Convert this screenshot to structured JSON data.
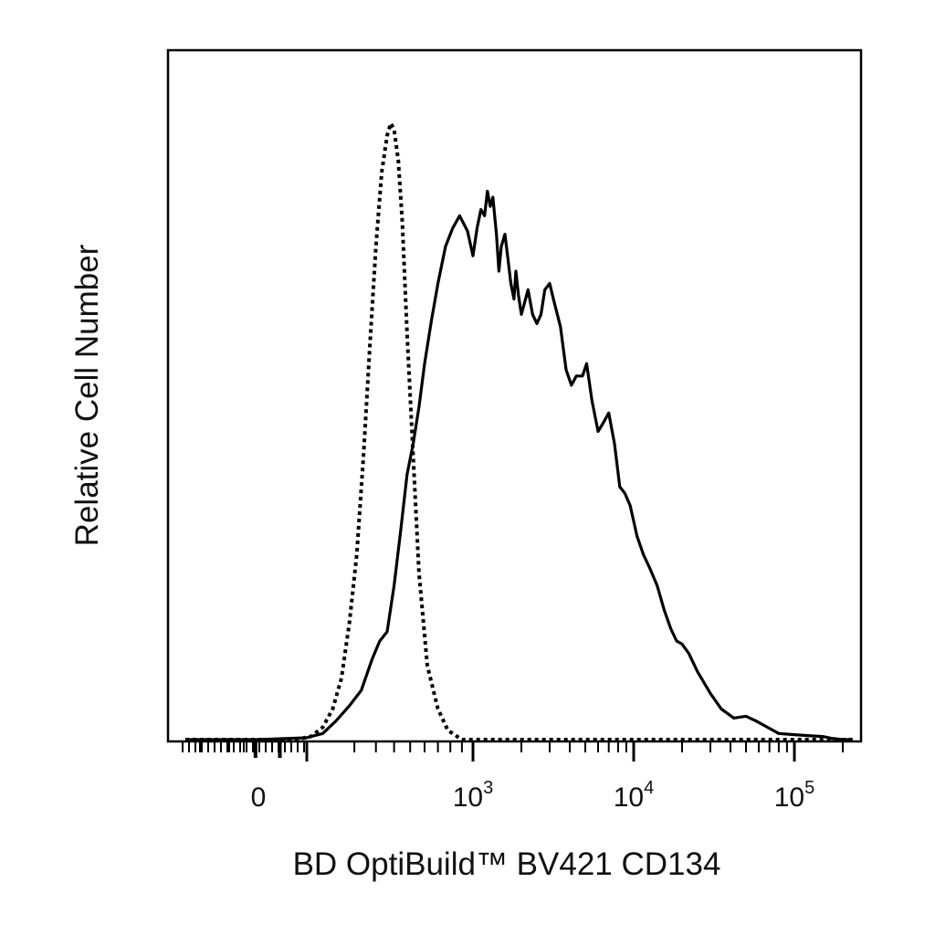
{
  "chart_data": {
    "type": "line",
    "title": "",
    "xlabel": "BD OptiBuild™ BV421 CD134",
    "ylabel": "Relative Cell Number",
    "x_scale": "biexponential",
    "x_ticks": [
      {
        "value": 0,
        "base": "0",
        "exp": ""
      },
      {
        "value": 1000,
        "base": "10",
        "exp": "3"
      },
      {
        "value": 10000,
        "base": "10",
        "exp": "4"
      },
      {
        "value": 100000,
        "base": "10",
        "exp": "5"
      }
    ],
    "xlim": [
      -250,
      230000
    ],
    "ylim": [
      0,
      100
    ],
    "grid": false,
    "legend": "none",
    "series": [
      {
        "line_style": "dotted",
        "color": "#000000",
        "points": [
          [
            -250,
            0
          ],
          [
            -60,
            0
          ],
          [
            30,
            0
          ],
          [
            60,
            0.5
          ],
          [
            90,
            2
          ],
          [
            120,
            5
          ],
          [
            150,
            10
          ],
          [
            180,
            19
          ],
          [
            210,
            30
          ],
          [
            240,
            46
          ],
          [
            270,
            64
          ],
          [
            300,
            80
          ],
          [
            330,
            92
          ],
          [
            360,
            98
          ],
          [
            380,
            100
          ],
          [
            400,
            99
          ],
          [
            425,
            94
          ],
          [
            450,
            84
          ],
          [
            480,
            66
          ],
          [
            520,
            46
          ],
          [
            560,
            27
          ],
          [
            620,
            12
          ],
          [
            700,
            5
          ],
          [
            780,
            1.5
          ],
          [
            900,
            0
          ],
          [
            1000,
            0
          ],
          [
            10000,
            0
          ],
          [
            230000,
            0
          ]
        ]
      },
      {
        "line_style": "solid",
        "color": "#000000",
        "points": [
          [
            -250,
            0
          ],
          [
            0,
            0
          ],
          [
            50,
            0.3
          ],
          [
            90,
            1
          ],
          [
            130,
            3
          ],
          [
            180,
            5.5
          ],
          [
            230,
            8
          ],
          [
            280,
            13
          ],
          [
            320,
            16
          ],
          [
            360,
            17.5
          ],
          [
            400,
            25
          ],
          [
            440,
            34
          ],
          [
            480,
            43
          ],
          [
            520,
            48
          ],
          [
            560,
            54
          ],
          [
            600,
            61
          ],
          [
            650,
            68
          ],
          [
            700,
            74
          ],
          [
            760,
            80
          ],
          [
            820,
            83
          ],
          [
            880,
            85
          ],
          [
            950,
            82.5
          ],
          [
            1000,
            78.5
          ],
          [
            1060,
            83
          ],
          [
            1120,
            86
          ],
          [
            1180,
            85
          ],
          [
            1230,
            89
          ],
          [
            1280,
            86.5
          ],
          [
            1330,
            88
          ],
          [
            1400,
            82
          ],
          [
            1450,
            76
          ],
          [
            1500,
            80
          ],
          [
            1580,
            82
          ],
          [
            1650,
            78
          ],
          [
            1720,
            74
          ],
          [
            1800,
            71.5
          ],
          [
            1850,
            76
          ],
          [
            1920,
            72
          ],
          [
            2000,
            69
          ],
          [
            2100,
            71
          ],
          [
            2200,
            73
          ],
          [
            2350,
            69
          ],
          [
            2500,
            67.5
          ],
          [
            2650,
            69
          ],
          [
            2800,
            73
          ],
          [
            3000,
            74
          ],
          [
            3200,
            71
          ],
          [
            3500,
            67
          ],
          [
            3800,
            60
          ],
          [
            4100,
            57.5
          ],
          [
            4400,
            59
          ],
          [
            4800,
            59
          ],
          [
            5100,
            61
          ],
          [
            5500,
            55
          ],
          [
            6000,
            50
          ],
          [
            6500,
            51.5
          ],
          [
            7000,
            53
          ],
          [
            7600,
            48
          ],
          [
            8200,
            41
          ],
          [
            8800,
            40
          ],
          [
            9500,
            38
          ],
          [
            10500,
            33
          ],
          [
            11500,
            30
          ],
          [
            12500,
            28
          ],
          [
            14000,
            25
          ],
          [
            15500,
            21
          ],
          [
            17000,
            18
          ],
          [
            18500,
            16
          ],
          [
            20000,
            15.5
          ],
          [
            22000,
            14
          ],
          [
            25000,
            11
          ],
          [
            30000,
            7.5
          ],
          [
            35000,
            5
          ],
          [
            42000,
            3.5
          ],
          [
            50000,
            3.8
          ],
          [
            58000,
            3
          ],
          [
            68000,
            2
          ],
          [
            80000,
            1
          ],
          [
            100000,
            0.8
          ],
          [
            130000,
            0.6
          ],
          [
            150000,
            0.5
          ],
          [
            170000,
            0.2
          ],
          [
            200000,
            0
          ],
          [
            230000,
            0
          ]
        ]
      }
    ]
  }
}
